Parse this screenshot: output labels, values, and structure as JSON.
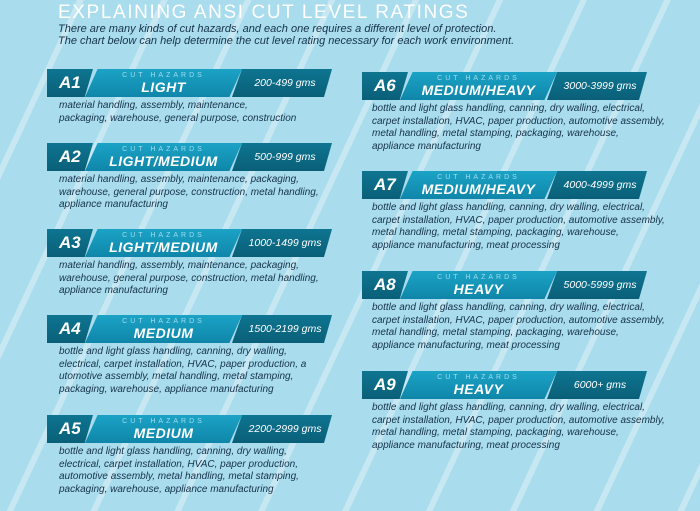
{
  "title": "EXPLAINING ANSI CUT LEVEL RATINGS",
  "intro": [
    "There are many kinds of cut hazards, and each one requires a different level of protection.",
    "The chart below can help determine the cut level rating necessary for each work environment."
  ],
  "hazard_label": "CUT HAZARDS",
  "colors": {
    "dark_blue": "#0a5f78",
    "mid_blue": "#1ba3c6",
    "background": "#a9dced",
    "text": "#15324a"
  },
  "ratings": [
    {
      "code": "A1",
      "level": "LIGHT",
      "range": "200-499 gms",
      "lines": [
        "material handling, assembly, maintenance,",
        "packaging, warehouse, general purpose, construction"
      ]
    },
    {
      "code": "A2",
      "level": "LIGHT/MEDIUM",
      "range": "500-999 gms",
      "lines": [
        "material handling, assembly, maintenance, packaging,",
        "warehouse, general purpose, construction, metal handling,",
        "appliance manufacturing"
      ]
    },
    {
      "code": "A3",
      "level": "LIGHT/MEDIUM",
      "range": "1000-1499 gms",
      "lines": [
        "material handling, assembly, maintenance, packaging,",
        "warehouse, general purpose, construction, metal handling,",
        "appliance manufacturing"
      ]
    },
    {
      "code": "A4",
      "level": "MEDIUM",
      "range": "1500-2199 gms",
      "lines": [
        "bottle and light glass handling, canning, dry walling,",
        "electrical, carpet installation, HVAC, paper production, a",
        "utomotive assembly, metal handling, metal stamping,",
        "packaging, warehouse, appliance manufacturing"
      ]
    },
    {
      "code": "A5",
      "level": "MEDIUM",
      "range": "2200-2999 gms",
      "lines": [
        "bottle and light glass handling, canning, dry walling,",
        "electrical, carpet installation, HVAC, paper production,",
        "automotive assembly, metal handling, metal stamping,",
        "packaging, warehouse, appliance manufacturing"
      ]
    },
    {
      "code": "A6",
      "level": "MEDIUM/HEAVY",
      "range": "3000-3999 gms",
      "lines": [
        "bottle and light glass handling, canning, dry walling, electrical,",
        "carpet installation, HVAC, paper production, automotive assembly,",
        "metal handling, metal stamping, packaging, warehouse,",
        "appliance manufacturing"
      ]
    },
    {
      "code": "A7",
      "level": "MEDIUM/HEAVY",
      "range": "4000-4999 gms",
      "lines": [
        "bottle and light glass handling, canning, dry walling, electrical,",
        "carpet installation, HVAC, paper production, automotive assembly,",
        "metal handling, metal stamping, packaging, warehouse,",
        "appliance manufacturing, meat processing"
      ]
    },
    {
      "code": "A8",
      "level": "HEAVY",
      "range": "5000-5999 gms",
      "lines": [
        "bottle and light glass handling, canning, dry walling, electrical,",
        "carpet installation, HVAC, paper production, automotive assembly,",
        "metal handling, metal stamping, packaging, warehouse,",
        "appliance manufacturing, meat processing"
      ]
    },
    {
      "code": "A9",
      "level": "HEAVY",
      "range": "6000+ gms",
      "lines": [
        "bottle and light glass handling, canning, dry walling, electrical,",
        "carpet installation, HVAC, paper production, automotive assembly,",
        "metal handling, metal stamping, packaging, warehouse,",
        "appliance manufacturing, meat processing"
      ]
    }
  ]
}
